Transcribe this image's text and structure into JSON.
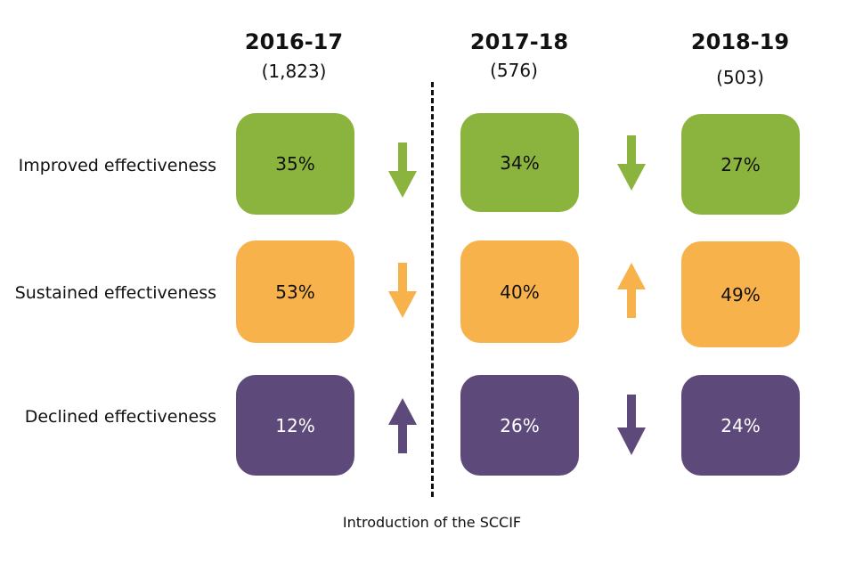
{
  "colors": {
    "improved": "#8bb43f",
    "sustained": "#f8b24c",
    "declined": "#5e4a7a"
  },
  "columns": [
    {
      "year": "2016-17",
      "count": "(1,823)"
    },
    {
      "year": "2017-18",
      "count": "(576)"
    },
    {
      "year": "2018-19",
      "count": "(503)"
    }
  ],
  "rows": [
    {
      "label": "Improved effectiveness",
      "values": [
        "35%",
        "34%",
        "27%"
      ],
      "arrows": [
        "down",
        "down"
      ]
    },
    {
      "label": "Sustained effectiveness",
      "values": [
        "53%",
        "40%",
        "49%"
      ],
      "arrows": [
        "down",
        "up"
      ]
    },
    {
      "label": "Declined effectiveness",
      "values": [
        "12%",
        "26%",
        "24%"
      ],
      "arrows": [
        "up",
        "down"
      ]
    }
  ],
  "footer": "Introduction of the SCCIF"
}
